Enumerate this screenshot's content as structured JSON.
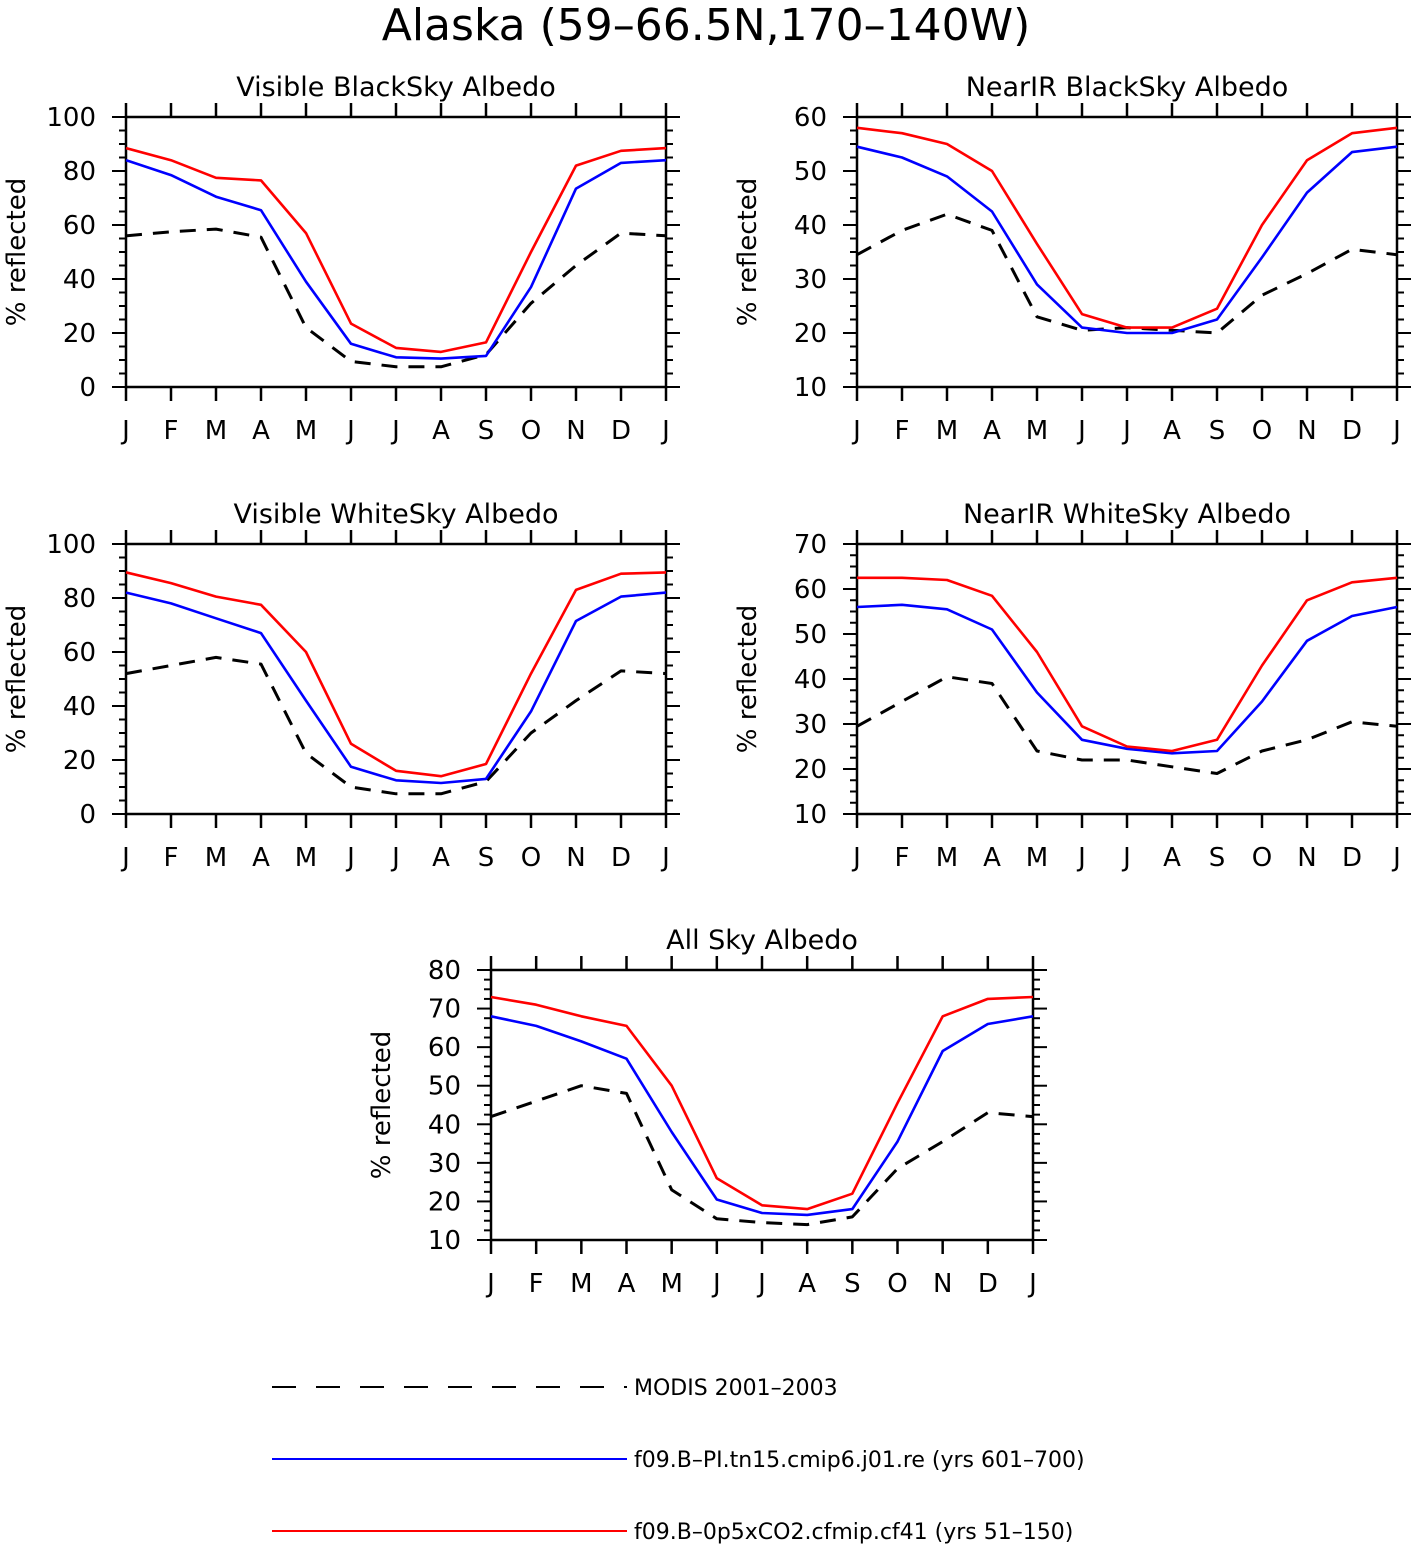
{
  "figure_title": "Alaska (59–66.5N,170–140W)",
  "chart_data": [
    {
      "type": "line",
      "title": "Visible BlackSky Albedo",
      "ylabel": "% reflected",
      "xlabel": "",
      "categories": [
        "J",
        "F",
        "M",
        "A",
        "M",
        "J",
        "J",
        "A",
        "S",
        "O",
        "N",
        "D",
        "J"
      ],
      "ylim": [
        0,
        100
      ],
      "yticks": [
        0,
        20,
        40,
        60,
        80,
        100
      ],
      "series": [
        {
          "name": "MODIS 2001–2003",
          "color": "#000000",
          "dashed": true,
          "values": [
            56,
            57.5,
            58.5,
            55.5,
            22,
            9.5,
            7.5,
            7.5,
            12,
            31,
            45,
            57,
            56
          ]
        },
        {
          "name": "f09.B–PI.tn15.cmip6.j01.re (yrs 601–700)",
          "color": "#0000ff",
          "dashed": false,
          "values": [
            84,
            78.5,
            70.5,
            65.5,
            39,
            16,
            11,
            10.5,
            11.5,
            37,
            73.5,
            83,
            84
          ]
        },
        {
          "name": "f09.B–0p5xCO2.cfmip.cf41 (yrs 51–150)",
          "color": "#ff0000",
          "dashed": false,
          "values": [
            88.5,
            84,
            77.5,
            76.5,
            57,
            23.5,
            14.5,
            13,
            16.5,
            50,
            82,
            87.5,
            88.5
          ]
        }
      ]
    },
    {
      "type": "line",
      "title": "NearIR BlackSky Albedo",
      "ylabel": "% reflected",
      "xlabel": "",
      "categories": [
        "J",
        "F",
        "M",
        "A",
        "M",
        "J",
        "J",
        "A",
        "S",
        "O",
        "N",
        "D",
        "J"
      ],
      "ylim": [
        10,
        60
      ],
      "yticks": [
        10,
        20,
        30,
        40,
        50,
        60
      ],
      "series": [
        {
          "name": "MODIS 2001–2003",
          "color": "#000000",
          "dashed": true,
          "values": [
            34.5,
            39,
            42,
            39,
            23,
            20.5,
            21,
            20.5,
            20,
            27,
            31,
            35.5,
            34.5
          ]
        },
        {
          "name": "f09.B–PI.tn15.cmip6.j01.re (yrs 601–700)",
          "color": "#0000ff",
          "dashed": false,
          "values": [
            54.5,
            52.5,
            49,
            42.5,
            29,
            21,
            20,
            20,
            22.5,
            34,
            46,
            53.5,
            54.5
          ]
        },
        {
          "name": "f09.B–0p5xCO2.cfmip.cf41 (yrs 51–150)",
          "color": "#ff0000",
          "dashed": false,
          "values": [
            58,
            57,
            55,
            50,
            36.5,
            23.5,
            21,
            21,
            24.5,
            40,
            52,
            57,
            58
          ]
        }
      ]
    },
    {
      "type": "line",
      "title": "Visible WhiteSky Albedo",
      "ylabel": "% reflected",
      "xlabel": "",
      "categories": [
        "J",
        "F",
        "M",
        "A",
        "M",
        "J",
        "J",
        "A",
        "S",
        "O",
        "N",
        "D",
        "J"
      ],
      "ylim": [
        0,
        100
      ],
      "yticks": [
        0,
        20,
        40,
        60,
        80,
        100
      ],
      "series": [
        {
          "name": "MODIS 2001–2003",
          "color": "#000000",
          "dashed": true,
          "values": [
            52,
            55,
            58,
            55.5,
            22.5,
            10,
            7.5,
            7.5,
            12,
            30,
            42,
            53,
            52
          ]
        },
        {
          "name": "f09.B–PI.tn15.cmip6.j01.re (yrs 601–700)",
          "color": "#0000ff",
          "dashed": false,
          "values": [
            82,
            78,
            72.5,
            67,
            42,
            17.5,
            12.5,
            11.5,
            13,
            38,
            71.5,
            80.5,
            82
          ]
        },
        {
          "name": "f09.B–0p5xCO2.cfmip.cf41 (yrs 51–150)",
          "color": "#ff0000",
          "dashed": false,
          "values": [
            89.5,
            85.5,
            80.5,
            77.5,
            60,
            26,
            16,
            14,
            18.5,
            52,
            83,
            89,
            89.5
          ]
        }
      ]
    },
    {
      "type": "line",
      "title": "NearIR WhiteSky Albedo",
      "ylabel": "% reflected",
      "xlabel": "",
      "categories": [
        "J",
        "F",
        "M",
        "A",
        "M",
        "J",
        "J",
        "A",
        "S",
        "O",
        "N",
        "D",
        "J"
      ],
      "ylim": [
        10,
        70
      ],
      "yticks": [
        10,
        20,
        30,
        40,
        50,
        60,
        70
      ],
      "series": [
        {
          "name": "MODIS 2001–2003",
          "color": "#000000",
          "dashed": true,
          "values": [
            29.5,
            35,
            40.5,
            39,
            24,
            22,
            22,
            20.5,
            19,
            24,
            26.5,
            30.5,
            29.5
          ]
        },
        {
          "name": "f09.B–PI.tn15.cmip6.j01.re (yrs 601–700)",
          "color": "#0000ff",
          "dashed": false,
          "values": [
            56,
            56.5,
            55.5,
            51,
            37,
            26.5,
            24.5,
            23.5,
            24,
            35,
            48.5,
            54,
            56
          ]
        },
        {
          "name": "f09.B–0p5xCO2.cfmip.cf41 (yrs 51–150)",
          "color": "#ff0000",
          "dashed": false,
          "values": [
            62.5,
            62.5,
            62,
            58.5,
            46,
            29.5,
            25,
            24,
            26.5,
            43,
            57.5,
            61.5,
            62.5
          ]
        }
      ]
    },
    {
      "type": "line",
      "title": "All Sky Albedo",
      "ylabel": "% reflected",
      "xlabel": "",
      "categories": [
        "J",
        "F",
        "M",
        "A",
        "M",
        "J",
        "J",
        "A",
        "S",
        "O",
        "N",
        "D",
        "J"
      ],
      "ylim": [
        10,
        80
      ],
      "yticks": [
        10,
        20,
        30,
        40,
        50,
        60,
        70,
        80
      ],
      "series": [
        {
          "name": "MODIS 2001–2003",
          "color": "#000000",
          "dashed": true,
          "values": [
            42,
            46,
            50,
            48,
            23,
            15.5,
            14.5,
            14,
            16,
            28.5,
            35.5,
            43,
            42
          ]
        },
        {
          "name": "f09.B–PI.tn15.cmip6.j01.re (yrs 601–700)",
          "color": "#0000ff",
          "dashed": false,
          "values": [
            68,
            65.5,
            61.5,
            57,
            38,
            20.5,
            17,
            16.5,
            18,
            35.5,
            59,
            66,
            68
          ]
        },
        {
          "name": "f09.B–0p5xCO2.cfmip.cf41 (yrs 51–150)",
          "color": "#ff0000",
          "dashed": false,
          "values": [
            73,
            71,
            68,
            65.5,
            50,
            26,
            19,
            18,
            22,
            45.5,
            68,
            72.5,
            73
          ]
        }
      ]
    }
  ],
  "legend": [
    {
      "label": "MODIS 2001–2003",
      "color": "#000000",
      "dashed": true
    },
    {
      "label": "f09.B–PI.tn15.cmip6.j01.re (yrs 601–700)",
      "color": "#0000ff",
      "dashed": false
    },
    {
      "label": "f09.B–0p5xCO2.cfmip.cf41 (yrs 51–150)",
      "color": "#ff0000",
      "dashed": false
    }
  ]
}
